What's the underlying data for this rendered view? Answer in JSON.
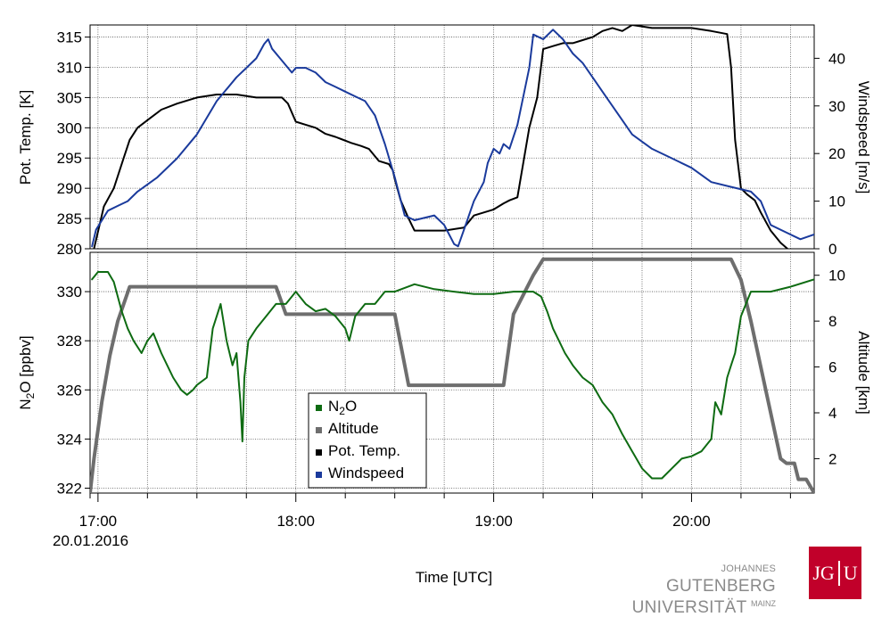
{
  "chart_data": [
    {
      "type": "line",
      "panel": "top",
      "x_unit": "hours UTC",
      "y_left": {
        "label": "Pot. Temp. [K]",
        "ylim": [
          280,
          317
        ],
        "ticks": [
          280,
          285,
          290,
          295,
          300,
          305,
          310,
          315
        ]
      },
      "y_right": {
        "label": "Windspeed [m/s]",
        "ylim": [
          0,
          47
        ],
        "ticks": [
          0,
          10,
          20,
          30,
          40
        ]
      },
      "series": [
        {
          "name": "Pot. Temp.",
          "axis": "left",
          "color": "#000000",
          "x": [
            16.98,
            17.03,
            17.08,
            17.13,
            17.16,
            17.2,
            17.26,
            17.32,
            17.4,
            17.5,
            17.6,
            17.7,
            17.8,
            17.88,
            17.93,
            17.96,
            18.0,
            18.05,
            18.1,
            18.15,
            18.2,
            18.28,
            18.33,
            18.37,
            18.42,
            18.47,
            18.49,
            18.5,
            18.53,
            18.57,
            18.6,
            18.7,
            18.75,
            18.85,
            18.9,
            18.95,
            19.0,
            19.05,
            19.08,
            19.12,
            19.18,
            19.22,
            19.25,
            19.3,
            19.35,
            19.4,
            19.45,
            19.5,
            19.55,
            19.6,
            19.65,
            19.7,
            19.8,
            19.9,
            20.0,
            20.1,
            20.18,
            20.2,
            20.22,
            20.25,
            20.28,
            20.32,
            20.35,
            20.4,
            20.45,
            20.52
          ],
          "y": [
            280,
            287,
            290,
            295,
            298,
            300,
            301.5,
            303,
            304,
            305,
            305.5,
            305.5,
            305,
            305,
            305,
            304,
            301,
            300.5,
            300,
            299,
            298.5,
            297.5,
            297,
            296.5,
            294.5,
            294,
            293,
            291.5,
            288,
            285,
            283,
            283,
            283,
            283.5,
            285.5,
            286,
            286.5,
            287.5,
            288,
            288.5,
            300,
            305,
            313,
            313.5,
            314,
            314,
            314.5,
            315,
            316,
            316.5,
            316,
            317,
            316.5,
            316.5,
            316.5,
            316,
            315.5,
            310,
            298,
            290,
            289,
            288,
            286,
            283,
            281,
            279
          ]
        },
        {
          "name": "Windspeed",
          "axis": "right",
          "color": "#1a3a9c",
          "x": [
            16.97,
            16.99,
            17.05,
            17.1,
            17.15,
            17.2,
            17.3,
            17.4,
            17.5,
            17.6,
            17.7,
            17.75,
            17.8,
            17.84,
            17.86,
            17.88,
            17.92,
            17.98,
            18.0,
            18.05,
            18.1,
            18.15,
            18.2,
            18.25,
            18.3,
            18.35,
            18.4,
            18.45,
            18.5,
            18.55,
            18.6,
            18.7,
            18.75,
            18.8,
            18.82,
            18.85,
            18.9,
            18.95,
            18.97,
            19.0,
            19.03,
            19.05,
            19.08,
            19.12,
            19.18,
            19.2,
            19.25,
            19.3,
            19.35,
            19.4,
            19.45,
            19.5,
            19.55,
            19.6,
            19.7,
            19.8,
            19.9,
            20.0,
            20.1,
            20.2,
            20.3,
            20.35,
            20.4,
            20.5,
            20.55,
            20.62
          ],
          "y": [
            0.5,
            4,
            8,
            9,
            10,
            12,
            15,
            19,
            24,
            31,
            36,
            38,
            40,
            43,
            44,
            42,
            40,
            37,
            38,
            38,
            37,
            35,
            34,
            33,
            32,
            31,
            28,
            22,
            15,
            7,
            6,
            7,
            5,
            1,
            0.5,
            4,
            10,
            14,
            18,
            21,
            20,
            22,
            21,
            26,
            38,
            45,
            44,
            46,
            44,
            41,
            39,
            36,
            33,
            30,
            24,
            21,
            19,
            17,
            14,
            13,
            12,
            10,
            5,
            3,
            2,
            3
          ]
        }
      ]
    },
    {
      "type": "line",
      "panel": "bottom",
      "x_unit": "hours UTC",
      "xlabel": "Time [UTC]",
      "xlim": [
        16.96,
        20.62
      ],
      "x_ticks": [
        17,
        18,
        19,
        20
      ],
      "x_tick_labels": [
        "17:00",
        "18:00",
        "19:00",
        "20:00"
      ],
      "x_date_label": "20.01.2016",
      "y_left": {
        "label": "N2O [ppbv]",
        "ylim": [
          321.8,
          331.6
        ],
        "ticks": [
          322,
          324,
          326,
          328,
          330
        ]
      },
      "y_right": {
        "label": "Altitude [km]",
        "ylim": [
          0.5,
          11
        ],
        "ticks": [
          2,
          4,
          6,
          8,
          10
        ]
      },
      "series": [
        {
          "name": "N2O",
          "axis": "left",
          "color": "#0e6b12",
          "x": [
            16.97,
            17.0,
            17.05,
            17.08,
            17.12,
            17.15,
            17.18,
            17.22,
            17.25,
            17.28,
            17.32,
            17.35,
            17.38,
            17.42,
            17.45,
            17.48,
            17.5,
            17.55,
            17.58,
            17.62,
            17.65,
            17.68,
            17.7,
            17.72,
            17.73,
            17.74,
            17.76,
            17.8,
            17.85,
            17.9,
            17.95,
            18.0,
            18.05,
            18.1,
            18.15,
            18.2,
            18.25,
            18.27,
            18.3,
            18.35,
            18.4,
            18.45,
            18.5,
            18.6,
            18.7,
            18.8,
            18.9,
            19.0,
            19.1,
            19.2,
            19.24,
            19.27,
            19.3,
            19.33,
            19.36,
            19.4,
            19.45,
            19.5,
            19.55,
            19.6,
            19.65,
            19.7,
            19.75,
            19.8,
            19.85,
            19.9,
            19.95,
            20.0,
            20.05,
            20.1,
            20.12,
            20.15,
            20.18,
            20.2,
            20.22,
            20.25,
            20.3,
            20.4,
            20.5,
            20.62
          ],
          "y": [
            330.5,
            330.8,
            330.8,
            330.4,
            329.2,
            328.5,
            328,
            327.5,
            328,
            328.3,
            327.5,
            327,
            326.5,
            326,
            325.8,
            326,
            326.2,
            326.5,
            328.5,
            329.5,
            328,
            327,
            327.5,
            325.5,
            323.9,
            326.5,
            328,
            328.5,
            329,
            329.5,
            329.5,
            330,
            329.5,
            329.2,
            329.3,
            329,
            328.5,
            328,
            329,
            329.5,
            329.5,
            330,
            330,
            330.3,
            330.1,
            330,
            329.9,
            329.9,
            330,
            330,
            329.8,
            329.2,
            328.5,
            328,
            327.5,
            327,
            326.5,
            326.2,
            325.5,
            325,
            324.2,
            323.5,
            322.8,
            322.4,
            322.4,
            322.8,
            323.2,
            323.3,
            323.5,
            324,
            325.5,
            325,
            326.5,
            327,
            327.5,
            329,
            330,
            330,
            330.2,
            330.5
          ]
        },
        {
          "name": "Altitude",
          "axis": "right",
          "color": "#6e6e6e",
          "x": [
            16.96,
            16.98,
            17.02,
            17.06,
            17.1,
            17.16,
            17.9,
            17.95,
            18.5,
            18.57,
            19.05,
            19.1,
            19.2,
            19.25,
            20.2,
            20.25,
            20.3,
            20.35,
            20.4,
            20.45,
            20.48,
            20.52,
            20.54,
            20.58,
            20.62
          ],
          "y": [
            0.5,
            2,
            4.5,
            6.5,
            8,
            9.5,
            9.5,
            8.3,
            8.3,
            5.2,
            5.2,
            8.3,
            10,
            10.7,
            10.7,
            9.8,
            8,
            6,
            4,
            2,
            1.8,
            1.8,
            1.1,
            1.1,
            0.5
          ]
        }
      ]
    }
  ],
  "legend": [
    {
      "key": "n2o",
      "text": "N",
      "sub": "2",
      "tail": "O",
      "color": "#0e6b12"
    },
    {
      "key": "alt",
      "text": "Altitude",
      "color": "#6e6e6e"
    },
    {
      "key": "theta",
      "text": "Pot. Temp.",
      "color": "#000000"
    },
    {
      "key": "wind",
      "text": "Windspeed",
      "color": "#1a3a9c"
    }
  ],
  "logo": {
    "line1_small": "JOHANNES",
    "line1_big": "GUTENBERG",
    "line2_big": "UNIVERSITÄT",
    "line2_small": "MAINZ",
    "box_left": "JG",
    "box_right": "U"
  }
}
